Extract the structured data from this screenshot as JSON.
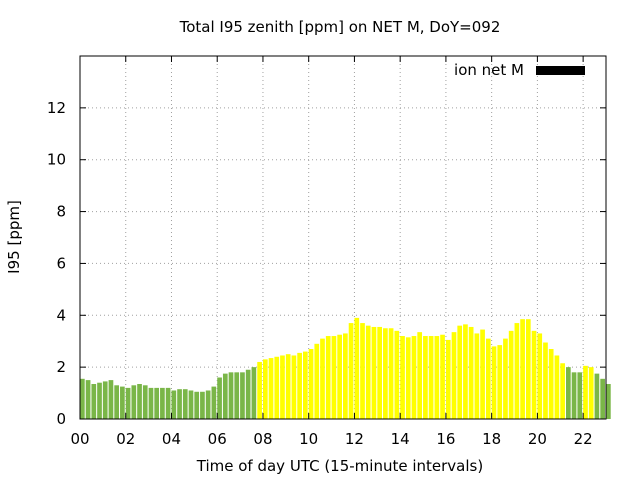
{
  "chart_data": {
    "type": "bar",
    "title": "Total I95 zenith [ppm] on NET M, DoY=092",
    "xlabel": "Time of day UTC (15-minute intervals)",
    "ylabel": "I95 [ppm]",
    "xlim": [
      0,
      23
    ],
    "ylim": [
      0,
      14
    ],
    "x_ticks": [
      "00",
      "02",
      "04",
      "06",
      "08",
      "10",
      "12",
      "14",
      "16",
      "18",
      "20",
      "22"
    ],
    "y_ticks": [
      "0",
      "2",
      "4",
      "6",
      "8",
      "10",
      "12"
    ],
    "grid": true,
    "legend": {
      "position": "top-right",
      "entries": [
        {
          "label": "ion net M",
          "color": "#000000"
        }
      ]
    },
    "bar_interval_hours": 0.25,
    "colors": {
      "low": "#7ab648",
      "high": "#ffff00"
    },
    "values": [
      1.55,
      1.5,
      1.35,
      1.4,
      1.45,
      1.5,
      1.3,
      1.25,
      1.2,
      1.3,
      1.35,
      1.3,
      1.2,
      1.2,
      1.2,
      1.2,
      1.1,
      1.15,
      1.15,
      1.1,
      1.05,
      1.05,
      1.1,
      1.25,
      1.6,
      1.75,
      1.8,
      1.8,
      1.8,
      1.9,
      2.0,
      2.2,
      2.3,
      2.35,
      2.4,
      2.45,
      2.5,
      2.45,
      2.55,
      2.6,
      2.7,
      2.9,
      3.1,
      3.2,
      3.2,
      3.25,
      3.3,
      3.7,
      3.9,
      3.7,
      3.6,
      3.55,
      3.55,
      3.5,
      3.5,
      3.4,
      3.2,
      3.15,
      3.2,
      3.35,
      3.2,
      3.2,
      3.2,
      3.25,
      3.05,
      3.35,
      3.6,
      3.65,
      3.55,
      3.3,
      3.45,
      3.1,
      2.8,
      2.85,
      3.1,
      3.4,
      3.7,
      3.85,
      3.85,
      3.4,
      3.3,
      2.95,
      2.7,
      2.45,
      2.15,
      2.0,
      1.8,
      1.8,
      2.05,
      2.0,
      1.75,
      1.55,
      1.35
    ],
    "value_colors": [
      "low",
      "low",
      "low",
      "low",
      "low",
      "low",
      "low",
      "low",
      "low",
      "low",
      "low",
      "low",
      "low",
      "low",
      "low",
      "low",
      "low",
      "low",
      "low",
      "low",
      "low",
      "low",
      "low",
      "low",
      "low",
      "low",
      "low",
      "low",
      "low",
      "low",
      "low",
      "high",
      "high",
      "high",
      "high",
      "high",
      "high",
      "high",
      "high",
      "high",
      "high",
      "high",
      "high",
      "high",
      "high",
      "high",
      "high",
      "high",
      "high",
      "high",
      "high",
      "high",
      "high",
      "high",
      "high",
      "high",
      "high",
      "high",
      "high",
      "high",
      "high",
      "high",
      "high",
      "high",
      "high",
      "high",
      "high",
      "high",
      "high",
      "high",
      "high",
      "high",
      "high",
      "high",
      "high",
      "high",
      "high",
      "high",
      "high",
      "high",
      "high",
      "high",
      "high",
      "high",
      "high",
      "low",
      "low",
      "low",
      "high",
      "high",
      "low",
      "low",
      "low"
    ]
  }
}
